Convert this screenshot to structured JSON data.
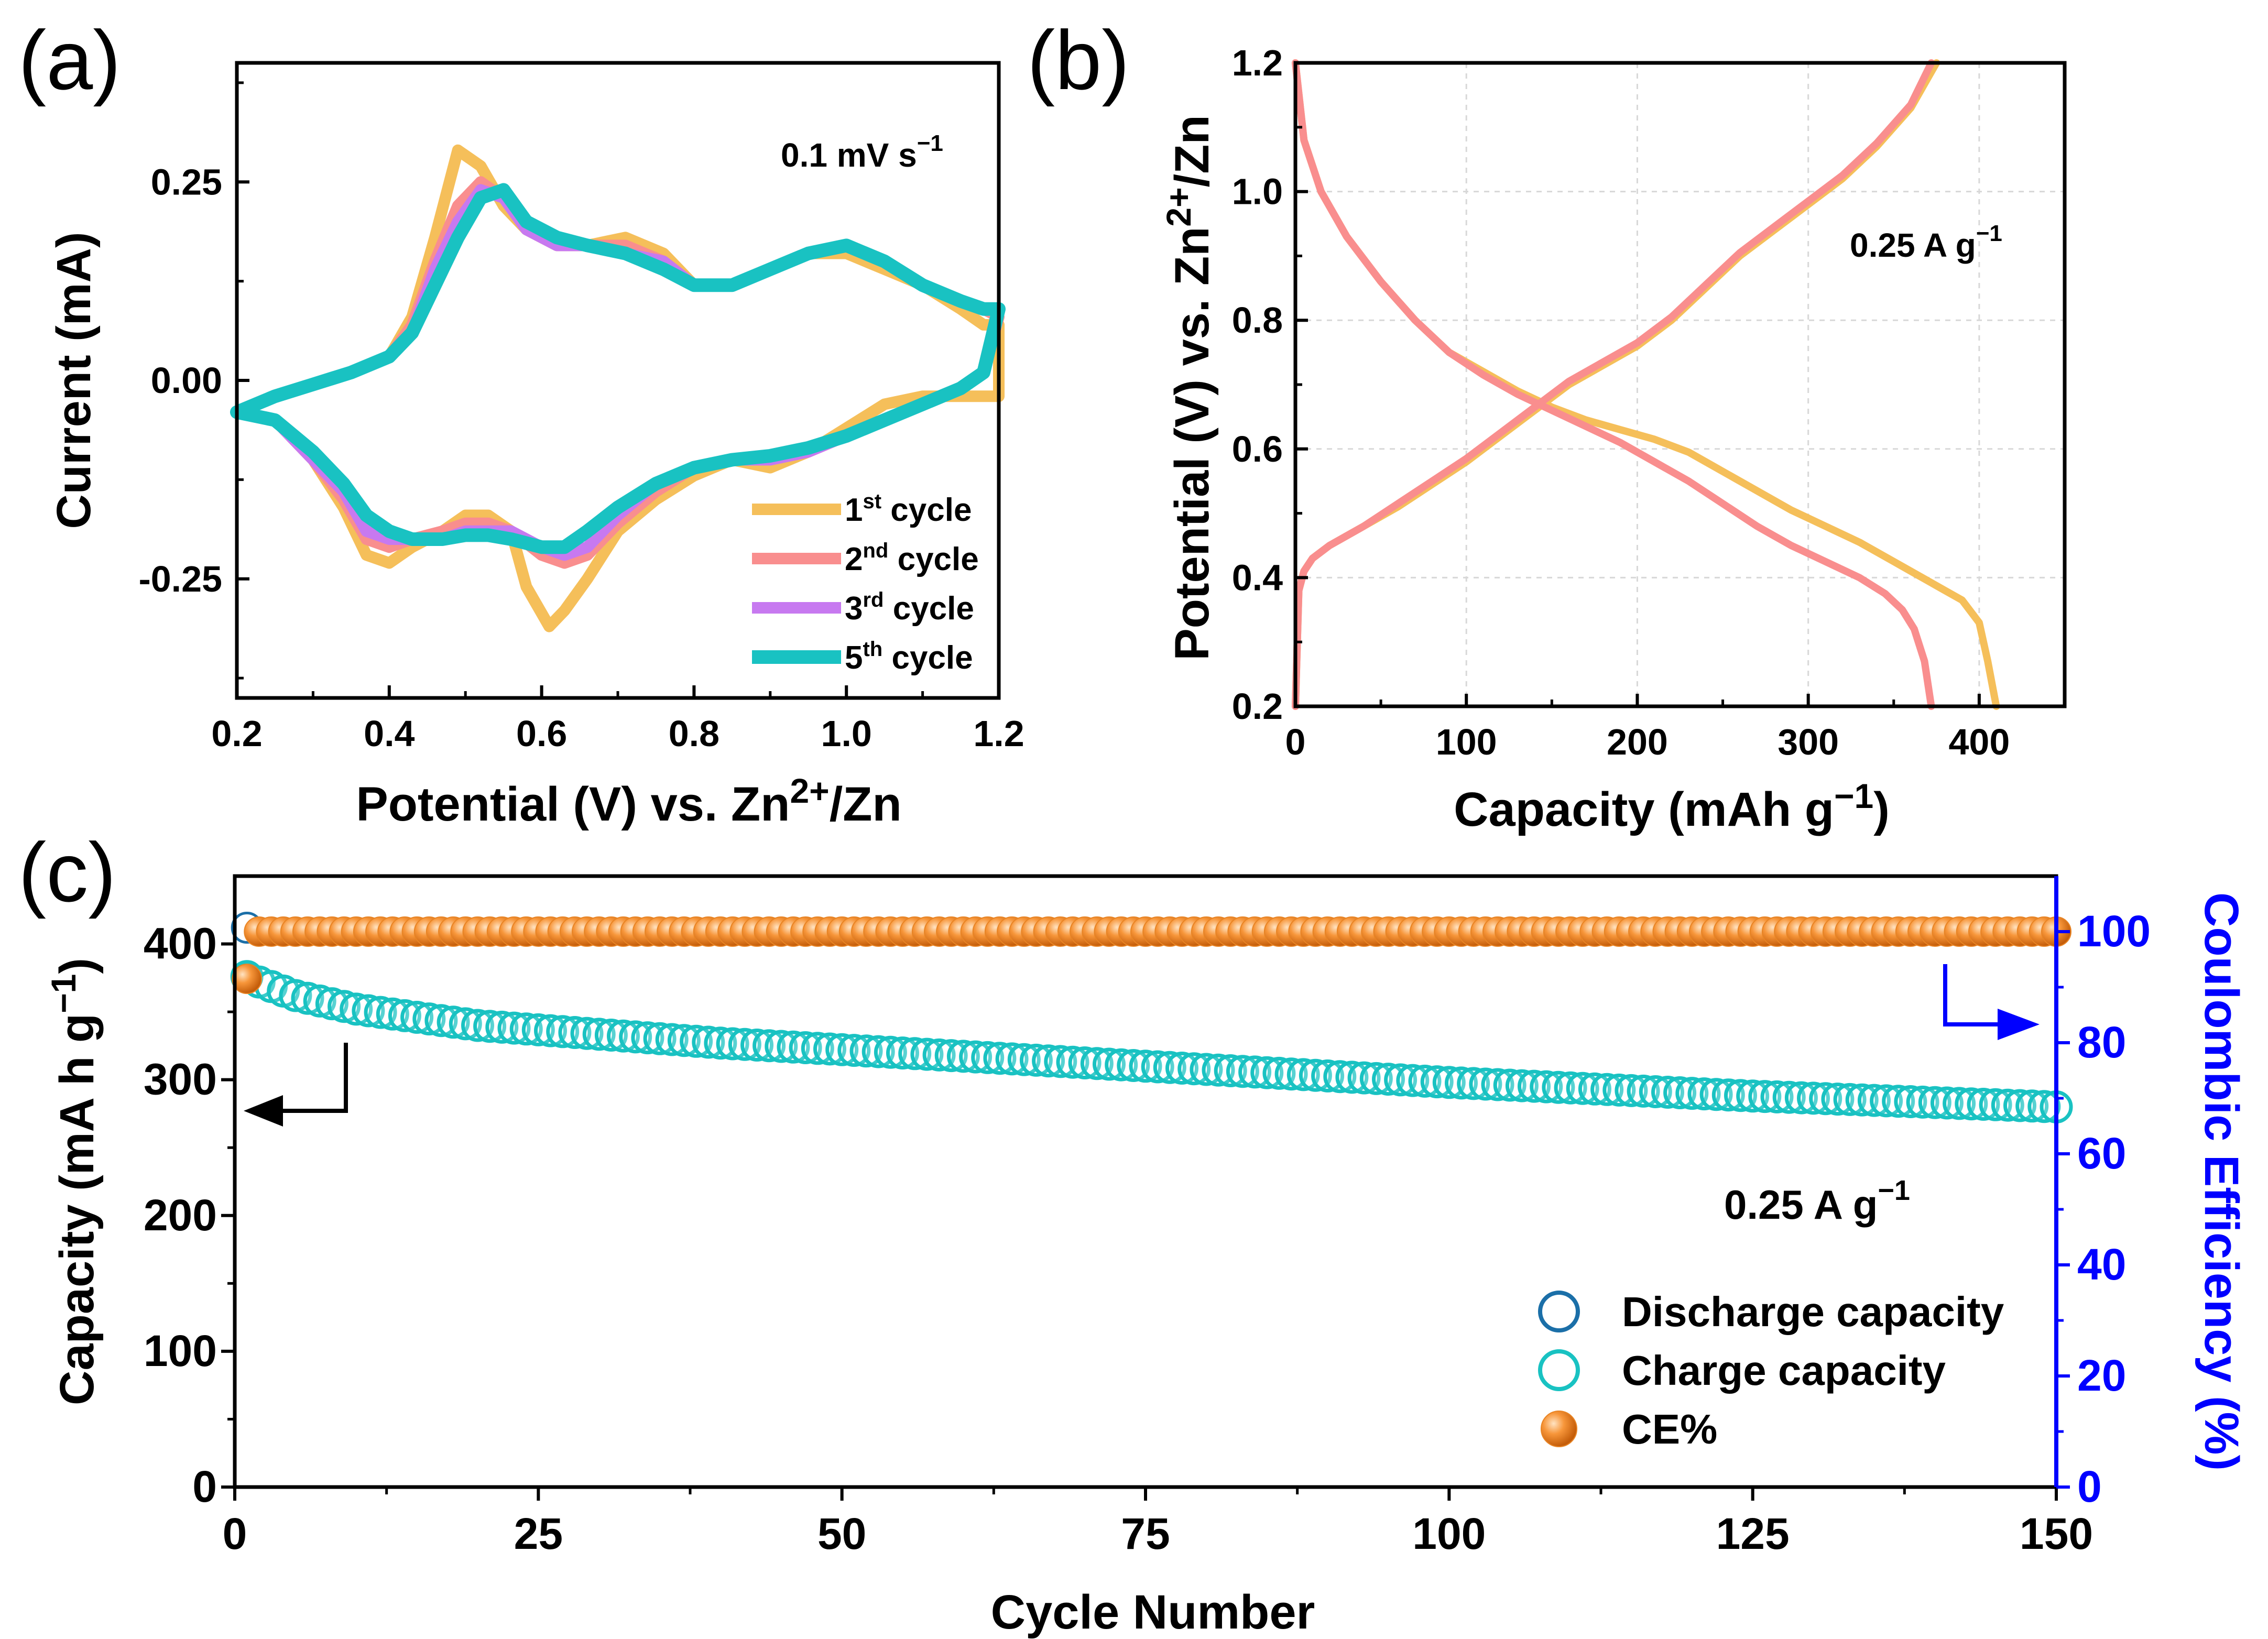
{
  "chart_data": [
    {
      "id": "a",
      "type": "line",
      "panel_label": "(a)",
      "title": "",
      "xlabel": "Potential (V) vs. Zn2+/Zn",
      "xlabel_parts": {
        "main": "Potential (V) vs. Zn",
        "sup": "2+",
        "tail": "/Zn"
      },
      "ylabel": "Current (mA)",
      "xlim": [
        0.2,
        1.2
      ],
      "ylim": [
        -0.4,
        0.4
      ],
      "xticks": [
        "0.2",
        "0.4",
        "0.6",
        "0.8",
        "1.0",
        "1.2"
      ],
      "yticks": [
        {
          "value": 0.25,
          "label": "0.25"
        },
        {
          "value": 0.0,
          "label": "0.00"
        },
        {
          "value": -0.25,
          "label": "-0.25"
        }
      ],
      "annotation": {
        "main": "0.1 mV s",
        "sup": "−1"
      },
      "legend_position": "bottom-right",
      "series": [
        {
          "name": "1st cycle",
          "label": "1",
          "label_sup": "st",
          "label_tail": " cycle",
          "color": "#f5bf5a",
          "x": [
            0.2,
            0.25,
            0.3,
            0.35,
            0.4,
            0.43,
            0.46,
            0.49,
            0.52,
            0.55,
            0.58,
            0.62,
            0.66,
            0.71,
            0.76,
            0.8,
            0.85,
            0.9,
            0.95,
            1.0,
            1.05,
            1.1,
            1.15,
            1.18,
            1.2,
            1.2,
            1.15,
            1.1,
            1.05,
            1.0,
            0.95,
            0.9,
            0.85,
            0.8,
            0.75,
            0.7,
            0.66,
            0.63,
            0.61,
            0.58,
            0.56,
            0.53,
            0.5,
            0.47,
            0.43,
            0.4,
            0.37,
            0.34,
            0.3,
            0.25,
            0.2
          ],
          "y": [
            -0.04,
            -0.02,
            -0.005,
            0.01,
            0.03,
            0.08,
            0.18,
            0.29,
            0.27,
            0.22,
            0.19,
            0.17,
            0.17,
            0.18,
            0.16,
            0.12,
            0.12,
            0.14,
            0.16,
            0.16,
            0.14,
            0.12,
            0.09,
            0.07,
            0.07,
            -0.02,
            -0.02,
            -0.02,
            -0.03,
            -0.06,
            -0.09,
            -0.11,
            -0.1,
            -0.12,
            -0.15,
            -0.19,
            -0.25,
            -0.29,
            -0.31,
            -0.26,
            -0.19,
            -0.17,
            -0.17,
            -0.19,
            -0.21,
            -0.23,
            -0.22,
            -0.16,
            -0.1,
            -0.05,
            -0.04
          ]
        },
        {
          "name": "2nd cycle",
          "label": "2",
          "label_sup": "nd",
          "label_tail": " cycle",
          "color": "#f98e8e",
          "x": [
            0.2,
            0.25,
            0.3,
            0.35,
            0.4,
            0.43,
            0.46,
            0.49,
            0.52,
            0.55,
            0.58,
            0.62,
            0.66,
            0.71,
            0.76,
            0.8,
            0.85,
            0.9,
            0.95,
            1.0,
            1.05,
            1.1,
            1.15,
            1.18,
            1.2,
            1.18,
            1.15,
            1.1,
            1.05,
            1.0,
            0.95,
            0.9,
            0.85,
            0.8,
            0.75,
            0.7,
            0.66,
            0.63,
            0.6,
            0.56,
            0.53,
            0.5,
            0.47,
            0.43,
            0.4,
            0.37,
            0.34,
            0.3,
            0.25,
            0.2
          ],
          "y": [
            -0.04,
            -0.02,
            -0.005,
            0.01,
            0.03,
            0.07,
            0.15,
            0.22,
            0.25,
            0.23,
            0.19,
            0.17,
            0.17,
            0.17,
            0.15,
            0.12,
            0.12,
            0.14,
            0.16,
            0.17,
            0.15,
            0.12,
            0.1,
            0.09,
            0.08,
            0.01,
            -0.01,
            -0.03,
            -0.05,
            -0.07,
            -0.09,
            -0.1,
            -0.1,
            -0.11,
            -0.14,
            -0.18,
            -0.22,
            -0.23,
            -0.22,
            -0.19,
            -0.18,
            -0.18,
            -0.19,
            -0.2,
            -0.21,
            -0.2,
            -0.15,
            -0.1,
            -0.05,
            -0.04
          ]
        },
        {
          "name": "3rd cycle",
          "label": "3",
          "label_sup": "rd",
          "label_tail": " cycle",
          "color": "#c779f0",
          "x": [
            0.2,
            0.25,
            0.3,
            0.35,
            0.4,
            0.43,
            0.46,
            0.49,
            0.52,
            0.55,
            0.58,
            0.62,
            0.66,
            0.71,
            0.76,
            0.8,
            0.85,
            0.9,
            0.95,
            1.0,
            1.05,
            1.1,
            1.15,
            1.18,
            1.2,
            1.18,
            1.15,
            1.1,
            1.05,
            1.0,
            0.95,
            0.9,
            0.85,
            0.8,
            0.75,
            0.7,
            0.66,
            0.63,
            0.6,
            0.56,
            0.53,
            0.5,
            0.47,
            0.43,
            0.4,
            0.37,
            0.34,
            0.3,
            0.25,
            0.2
          ],
          "y": [
            -0.04,
            -0.02,
            -0.005,
            0.01,
            0.03,
            0.06,
            0.14,
            0.2,
            0.24,
            0.23,
            0.19,
            0.17,
            0.17,
            0.16,
            0.15,
            0.12,
            0.12,
            0.14,
            0.16,
            0.17,
            0.15,
            0.12,
            0.1,
            0.09,
            0.09,
            0.01,
            -0.01,
            -0.03,
            -0.05,
            -0.07,
            -0.09,
            -0.1,
            -0.1,
            -0.11,
            -0.13,
            -0.17,
            -0.21,
            -0.22,
            -0.21,
            -0.19,
            -0.19,
            -0.19,
            -0.2,
            -0.2,
            -0.2,
            -0.19,
            -0.14,
            -0.1,
            -0.05,
            -0.04
          ]
        },
        {
          "name": "5th cycle",
          "label": "5",
          "label_sup": "th",
          "label_tail": " cycle",
          "color": "#19c2c2",
          "x": [
            0.2,
            0.25,
            0.3,
            0.35,
            0.4,
            0.43,
            0.46,
            0.49,
            0.52,
            0.55,
            0.58,
            0.62,
            0.66,
            0.71,
            0.76,
            0.8,
            0.85,
            0.9,
            0.95,
            1.0,
            1.05,
            1.1,
            1.15,
            1.18,
            1.2,
            1.18,
            1.15,
            1.1,
            1.05,
            1.0,
            0.95,
            0.9,
            0.85,
            0.8,
            0.75,
            0.7,
            0.66,
            0.63,
            0.6,
            0.56,
            0.53,
            0.5,
            0.47,
            0.43,
            0.4,
            0.37,
            0.34,
            0.3,
            0.25,
            0.2
          ],
          "y": [
            -0.04,
            -0.02,
            -0.005,
            0.01,
            0.03,
            0.06,
            0.12,
            0.18,
            0.23,
            0.24,
            0.2,
            0.18,
            0.17,
            0.16,
            0.14,
            0.12,
            0.12,
            0.14,
            0.16,
            0.17,
            0.15,
            0.12,
            0.1,
            0.09,
            0.09,
            0.01,
            -0.01,
            -0.03,
            -0.05,
            -0.07,
            -0.085,
            -0.095,
            -0.1,
            -0.11,
            -0.13,
            -0.16,
            -0.19,
            -0.21,
            -0.21,
            -0.2,
            -0.195,
            -0.195,
            -0.2,
            -0.2,
            -0.19,
            -0.17,
            -0.13,
            -0.09,
            -0.05,
            -0.04
          ]
        }
      ]
    },
    {
      "id": "b",
      "type": "line",
      "panel_label": "(b)",
      "title": "",
      "xlabel": "Capacity (mAh g−1)",
      "xlabel_parts": {
        "main": "Capacity (mAh g",
        "sup": "−1",
        "tail": ")"
      },
      "ylabel": "Potential (V) vs. Zn2+/Zn",
      "ylabel_parts": {
        "main": "Potential (V) vs. Zn",
        "sup": "2+",
        "tail": "/Zn"
      },
      "xlim": [
        0,
        450
      ],
      "ylim": [
        0.2,
        1.2
      ],
      "xticks": [
        {
          "value": 0,
          "label": "0"
        },
        {
          "value": 100,
          "label": "100"
        },
        {
          "value": 200,
          "label": "200"
        },
        {
          "value": 300,
          "label": "300"
        },
        {
          "value": 400,
          "label": "400"
        }
      ],
      "yticks": [
        {
          "value": 0.2,
          "label": "0.2"
        },
        {
          "value": 0.4,
          "label": "0.4"
        },
        {
          "value": 0.6,
          "label": "0.6"
        },
        {
          "value": 0.8,
          "label": "0.8"
        },
        {
          "value": 1.0,
          "label": "1.0"
        },
        {
          "value": 1.2,
          "label": "1.2"
        }
      ],
      "annotation": {
        "main": "0.25 A g",
        "sup": "−1"
      },
      "series": [
        {
          "name": "discharge (yellow)",
          "color": "#f5bf5a",
          "x": [
            0,
            5,
            15,
            30,
            50,
            70,
            90,
            110,
            130,
            150,
            170,
            190,
            210,
            230,
            250,
            270,
            290,
            310,
            330,
            350,
            360,
            370,
            380,
            390,
            400,
            405,
            410
          ],
          "y": [
            1.2,
            1.08,
            1.0,
            0.93,
            0.86,
            0.8,
            0.75,
            0.72,
            0.69,
            0.665,
            0.645,
            0.63,
            0.615,
            0.595,
            0.565,
            0.535,
            0.505,
            0.48,
            0.455,
            0.425,
            0.41,
            0.395,
            0.38,
            0.365,
            0.33,
            0.27,
            0.2
          ]
        },
        {
          "name": "charge (yellow)",
          "color": "#f5bf5a",
          "x": [
            0,
            2,
            5,
            10,
            20,
            40,
            60,
            80,
            100,
            120,
            140,
            160,
            180,
            200,
            220,
            240,
            260,
            280,
            300,
            320,
            340,
            360,
            375
          ],
          "y": [
            0.2,
            0.38,
            0.41,
            0.43,
            0.45,
            0.48,
            0.51,
            0.545,
            0.58,
            0.62,
            0.66,
            0.7,
            0.73,
            0.76,
            0.8,
            0.85,
            0.9,
            0.94,
            0.98,
            1.02,
            1.07,
            1.13,
            1.2
          ]
        },
        {
          "name": "discharge (pink)",
          "color": "#f98e8e",
          "x": [
            0,
            5,
            15,
            30,
            50,
            70,
            90,
            110,
            130,
            150,
            170,
            190,
            210,
            230,
            250,
            270,
            290,
            310,
            330,
            345,
            355,
            362,
            368,
            372
          ],
          "y": [
            1.2,
            1.08,
            1.0,
            0.93,
            0.86,
            0.8,
            0.75,
            0.715,
            0.685,
            0.66,
            0.635,
            0.61,
            0.58,
            0.55,
            0.515,
            0.48,
            0.45,
            0.425,
            0.4,
            0.375,
            0.35,
            0.32,
            0.27,
            0.2
          ]
        },
        {
          "name": "charge (pink)",
          "color": "#f98e8e",
          "x": [
            0,
            2,
            5,
            10,
            20,
            40,
            60,
            80,
            100,
            120,
            140,
            160,
            180,
            200,
            220,
            240,
            260,
            280,
            300,
            320,
            340,
            360,
            372
          ],
          "y": [
            0.2,
            0.38,
            0.41,
            0.43,
            0.45,
            0.48,
            0.515,
            0.55,
            0.585,
            0.625,
            0.665,
            0.705,
            0.735,
            0.765,
            0.805,
            0.855,
            0.905,
            0.945,
            0.985,
            1.025,
            1.075,
            1.135,
            1.2
          ]
        }
      ]
    },
    {
      "id": "c",
      "type": "scatter",
      "panel_label": "(c)",
      "title": "",
      "xlabel": "Cycle Number",
      "ylabel": "Capacity (mA h g−1)",
      "ylabel_parts": {
        "main": "Capacity (mA h g",
        "sup": "−1",
        "tail": ")"
      },
      "y2label": "Coulombic Efficiency (%)",
      "xlim": [
        0,
        150
      ],
      "ylim": [
        0,
        450
      ],
      "y2lim": [
        0,
        110
      ],
      "xticks": [
        {
          "value": 0,
          "label": "0"
        },
        {
          "value": 25,
          "label": "25"
        },
        {
          "value": 50,
          "label": "50"
        },
        {
          "value": 75,
          "label": "75"
        },
        {
          "value": 100,
          "label": "100"
        },
        {
          "value": 125,
          "label": "125"
        },
        {
          "value": 150,
          "label": "150"
        }
      ],
      "yticks": [
        {
          "value": 0,
          "label": "0"
        },
        {
          "value": 100,
          "label": "100"
        },
        {
          "value": 200,
          "label": "200"
        },
        {
          "value": 300,
          "label": "300"
        },
        {
          "value": 400,
          "label": "400"
        }
      ],
      "y2ticks": [
        {
          "value": 0,
          "label": "0"
        },
        {
          "value": 20,
          "label": "20"
        },
        {
          "value": 40,
          "label": "40"
        },
        {
          "value": 60,
          "label": "60"
        },
        {
          "value": 80,
          "label": "80"
        },
        {
          "value": 100,
          "label": "100"
        }
      ],
      "annotation": {
        "main": "0.25 A g",
        "sup": "−1"
      },
      "legend_position": "bottom-right",
      "cycles": 150,
      "discharge_capacity": {
        "name": "Discharge capacity",
        "color": "#1b6fa8",
        "first": 412,
        "knots_x": [
          1,
          2,
          5,
          10,
          20,
          40,
          75,
          100,
          125,
          150
        ],
        "knots_y": [
          412,
          372,
          362,
          352,
          340,
          327,
          310,
          298,
          288,
          280
        ]
      },
      "charge_capacity": {
        "name": "Charge capacity",
        "color": "#19c2c2",
        "first": 376,
        "knots_x": [
          1,
          2,
          5,
          10,
          20,
          40,
          75,
          100,
          125,
          150
        ],
        "knots_y": [
          376,
          372,
          362,
          352,
          340,
          327,
          310,
          298,
          288,
          280
        ]
      },
      "ce": {
        "name": "CE%",
        "color": "#f28a2a",
        "first": 91.5,
        "rest": 100
      },
      "legend": [
        {
          "name": "Discharge capacity",
          "marker": "open-circle",
          "color": "#1b6fa8"
        },
        {
          "name": "Charge capacity",
          "marker": "open-circle",
          "color": "#19c2c2"
        },
        {
          "name": "CE%",
          "marker": "filled-sphere",
          "color": "#f28a2a"
        }
      ]
    }
  ]
}
